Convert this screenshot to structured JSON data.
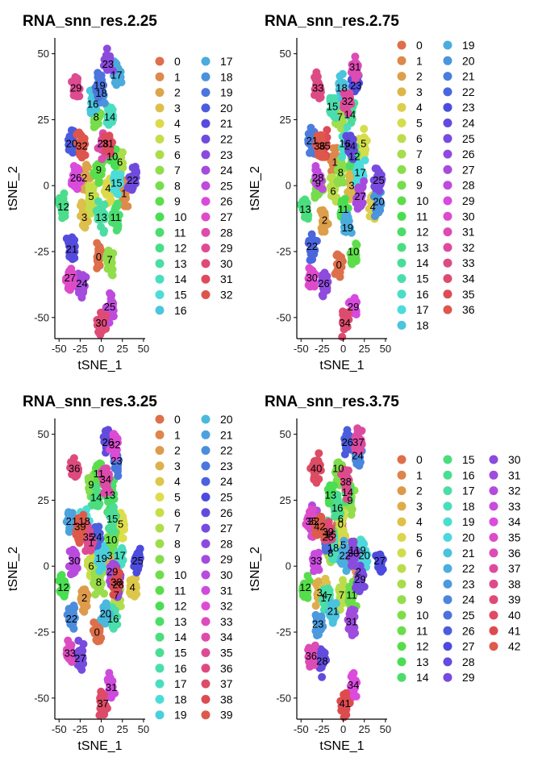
{
  "figure": {
    "panels": [
      {
        "title": "RNA_snn_res.2.25",
        "xlabel": "tSNE_1",
        "ylabel": "tSNE_2",
        "cluster_count": 33,
        "legend_per_column": 17,
        "cluster_centers": {
          "0": [
            -3,
            -27
          ],
          "1": [
            27,
            -3
          ],
          "2": [
            -20,
            3
          ],
          "3": [
            -20,
            -12
          ],
          "4": [
            8,
            -1
          ],
          "5": [
            -12,
            -4
          ],
          "6": [
            22,
            9
          ],
          "7": [
            10,
            -28
          ],
          "8": [
            -6,
            26
          ],
          "9": [
            -3,
            6
          ],
          "10": [
            13,
            11
          ],
          "11": [
            17,
            -12
          ],
          "12": [
            -45,
            -8
          ],
          "13": [
            0,
            -12
          ],
          "14": [
            10,
            26
          ],
          "15": [
            18,
            1
          ],
          "16": [
            -10,
            31
          ],
          "17": [
            18,
            42
          ],
          "18": [
            0,
            35
          ],
          "19": [
            -2,
            38
          ],
          "20": [
            -35,
            16
          ],
          "21": [
            -35,
            -24
          ],
          "22": [
            37,
            2
          ],
          "23": [
            8,
            46
          ],
          "24": [
            -23,
            -37
          ],
          "25": [
            10,
            -46
          ],
          "26": [
            -30,
            3
          ],
          "27": [
            -37,
            -35
          ],
          "28": [
            2,
            16
          ],
          "29": [
            -30,
            37
          ],
          "30": [
            0,
            -52
          ],
          "31": [
            8,
            16
          ],
          "32": [
            -23,
            15
          ]
        }
      },
      {
        "title": "RNA_snn_res.2.75",
        "xlabel": "tSNE_1",
        "ylabel": "tSNE_2",
        "cluster_count": 37,
        "legend_per_column": 19,
        "cluster_centers": {
          "0": [
            -5,
            -30
          ],
          "1": [
            -10,
            9
          ],
          "2": [
            -22,
            -13
          ],
          "3": [
            10,
            0
          ],
          "4": [
            35,
            -8
          ],
          "5": [
            24,
            16
          ],
          "6": [
            -12,
            -2
          ],
          "7": [
            -4,
            26
          ],
          "8": [
            -3,
            5
          ],
          "9": [
            -30,
            1
          ],
          "10": [
            12,
            -25
          ],
          "11": [
            0,
            -9
          ],
          "12": [
            13,
            11
          ],
          "13": [
            -45,
            -9
          ],
          "14": [
            8,
            27
          ],
          "15": [
            -13,
            30
          ],
          "16": [
            2,
            16
          ],
          "17": [
            20,
            5
          ],
          "18": [
            -2,
            37
          ],
          "19": [
            5,
            -16
          ],
          "20": [
            42,
            -6
          ],
          "21": [
            -37,
            17
          ],
          "22": [
            -37,
            -23
          ],
          "23": [
            15,
            38
          ],
          "24": [
            8,
            15
          ],
          "25": [
            42,
            2
          ],
          "26": [
            -23,
            -37
          ],
          "27": [
            20,
            -4
          ],
          "28": [
            -30,
            3
          ],
          "29": [
            12,
            -46
          ],
          "30": [
            -37,
            -35
          ],
          "31": [
            14,
            45
          ],
          "32": [
            5,
            32
          ],
          "33": [
            -30,
            37
          ],
          "34": [
            2,
            -52
          ],
          "35": [
            -22,
            15
          ],
          "36": [
            -28,
            15
          ]
        }
      },
      {
        "title": "RNA_snn_res.3.25",
        "xlabel": "tSNE_1",
        "ylabel": "tSNE_2",
        "cluster_count": 40,
        "legend_per_column": 20,
        "cluster_centers": {
          "0": [
            -5,
            -25
          ],
          "1": [
            -12,
            9
          ],
          "2": [
            -20,
            -12
          ],
          "3": [
            10,
            4
          ],
          "4": [
            37,
            -8
          ],
          "5": [
            23,
            16
          ],
          "6": [
            -12,
            0
          ],
          "7": [
            18,
            -11
          ],
          "8": [
            -3,
            -6
          ],
          "9": [
            -12,
            31
          ],
          "10": [
            12,
            10
          ],
          "11": [
            -3,
            35
          ],
          "12": [
            -45,
            -8
          ],
          "13": [
            10,
            27
          ],
          "14": [
            -6,
            26
          ],
          "15": [
            13,
            18
          ],
          "16": [
            14,
            -20
          ],
          "17": [
            22,
            4
          ],
          "18": [
            -20,
            17
          ],
          "19": [
            0,
            3
          ],
          "20": [
            5,
            -18
          ],
          "21": [
            -35,
            17
          ],
          "22": [
            -35,
            -20
          ],
          "23": [
            18,
            40
          ],
          "24": [
            -6,
            11
          ],
          "25": [
            43,
            2
          ],
          "26": [
            8,
            47
          ],
          "27": [
            -25,
            -35
          ],
          "28": [
            20,
            -7
          ],
          "29": [
            13,
            -2
          ],
          "30": [
            -32,
            2
          ],
          "31": [
            12,
            -46
          ],
          "32": [
            16,
            46
          ],
          "33": [
            -37,
            -33
          ],
          "34": [
            5,
            33
          ],
          "35": [
            -15,
            11
          ],
          "36": [
            -32,
            37
          ],
          "37": [
            2,
            -52
          ],
          "38": [
            18,
            -6
          ],
          "39": [
            -25,
            15
          ]
        }
      },
      {
        "title": "RNA_snn_res.3.75",
        "xlabel": "tSNE_1",
        "ylabel": "tSNE_2",
        "cluster_count": 43,
        "legend_per_column": 15,
        "cluster_centers": {
          "0": [
            -3,
            16
          ],
          "1": [
            10,
            6
          ],
          "2": [
            18,
            -2
          ],
          "3": [
            -28,
            -10
          ],
          "4": [
            -22,
            -11
          ],
          "5": [
            0,
            8
          ],
          "6": [
            -3,
            18
          ],
          "7": [
            -2,
            -11
          ],
          "8": [
            -15,
            5
          ],
          "9": [
            8,
            25
          ],
          "10": [
            -6,
            37
          ],
          "11": [
            10,
            -11
          ],
          "12": [
            -45,
            -8
          ],
          "13": [
            -15,
            27
          ],
          "14": [
            5,
            28
          ],
          "15": [
            -15,
            12
          ],
          "16": [
            -7,
            22
          ],
          "17": [
            -20,
            -12
          ],
          "18": [
            -12,
            7
          ],
          "19": [
            20,
            6
          ],
          "20": [
            25,
            4
          ],
          "21": [
            -12,
            -17
          ],
          "22": [
            2,
            4
          ],
          "23": [
            -30,
            -22
          ],
          "24": [
            17,
            42
          ],
          "25": [
            -18,
            11
          ],
          "26": [
            5,
            47
          ],
          "27": [
            43,
            2
          ],
          "28": [
            -25,
            -36
          ],
          "29": [
            20,
            -5
          ],
          "30": [
            12,
            5
          ],
          "31": [
            10,
            -21
          ],
          "32": [
            -35,
            17
          ],
          "33": [
            -32,
            2
          ],
          "34": [
            12,
            -45
          ],
          "35": [
            -38,
            17
          ],
          "36": [
            -38,
            -34
          ],
          "37": [
            18,
            47
          ],
          "38": [
            3,
            32
          ],
          "39": [
            -18,
            13
          ],
          "40": [
            -32,
            37
          ],
          "41": [
            2,
            -52
          ],
          "42": [
            -28,
            15
          ]
        }
      }
    ]
  },
  "chart_data": [
    {
      "type": "scatter",
      "title": "RNA_snn_res.2.25",
      "xlabel": "tSNE_1",
      "ylabel": "tSNE_2",
      "xlim": [
        -55,
        52
      ],
      "ylim": [
        -58,
        56
      ],
      "xticks": [
        -50,
        -25,
        0,
        25,
        50
      ],
      "yticks": [
        -50,
        -25,
        0,
        25,
        50
      ],
      "x_tick_labels": [
        "-50",
        "-25",
        "0",
        "25",
        "50"
      ],
      "y_tick_labels": [
        "-50",
        "-25",
        "0",
        "25",
        "50"
      ],
      "grid": false,
      "legend_placement": "right",
      "legend_entries": [
        "0",
        "1",
        "2",
        "3",
        "4",
        "5",
        "6",
        "7",
        "8",
        "9",
        "10",
        "11",
        "12",
        "13",
        "14",
        "15",
        "16",
        "17",
        "18",
        "19",
        "20",
        "21",
        "22",
        "23",
        "24",
        "25",
        "26",
        "27",
        "28",
        "29",
        "30",
        "31",
        "32"
      ]
    },
    {
      "type": "scatter",
      "title": "RNA_snn_res.2.75",
      "xlabel": "tSNE_1",
      "ylabel": "tSNE_2",
      "xlim": [
        -55,
        52
      ],
      "ylim": [
        -58,
        56
      ],
      "xticks": [
        -50,
        -25,
        0,
        25,
        50
      ],
      "yticks": [
        -50,
        -25,
        0,
        25,
        50
      ],
      "x_tick_labels": [
        "-50",
        "-25",
        "0",
        "25",
        "50"
      ],
      "y_tick_labels": [
        "-50",
        "-25",
        "0",
        "25",
        "50"
      ],
      "grid": false,
      "legend_placement": "right",
      "legend_entries": [
        "0",
        "1",
        "2",
        "3",
        "4",
        "5",
        "6",
        "7",
        "8",
        "9",
        "10",
        "11",
        "12",
        "13",
        "14",
        "15",
        "16",
        "17",
        "18",
        "19",
        "20",
        "21",
        "22",
        "23",
        "24",
        "25",
        "26",
        "27",
        "28",
        "29",
        "30",
        "31",
        "32",
        "33",
        "34",
        "35",
        "36"
      ]
    },
    {
      "type": "scatter",
      "title": "RNA_snn_res.3.25",
      "xlabel": "tSNE_1",
      "ylabel": "tSNE_2",
      "xlim": [
        -55,
        52
      ],
      "ylim": [
        -58,
        56
      ],
      "xticks": [
        -50,
        -25,
        0,
        25,
        50
      ],
      "yticks": [
        -50,
        -25,
        0,
        25,
        50
      ],
      "x_tick_labels": [
        "-50",
        "-25",
        "0",
        "25",
        "50"
      ],
      "y_tick_labels": [
        "-50",
        "-25",
        "0",
        "25",
        "50"
      ],
      "grid": false,
      "legend_placement": "right",
      "legend_entries": [
        "0",
        "1",
        "2",
        "3",
        "4",
        "5",
        "6",
        "7",
        "8",
        "9",
        "10",
        "11",
        "12",
        "13",
        "14",
        "15",
        "16",
        "17",
        "18",
        "19",
        "20",
        "21",
        "22",
        "23",
        "24",
        "25",
        "26",
        "27",
        "28",
        "29",
        "30",
        "31",
        "32",
        "33",
        "34",
        "35",
        "36",
        "37",
        "38",
        "39"
      ]
    },
    {
      "type": "scatter",
      "title": "RNA_snn_res.3.75",
      "xlabel": "tSNE_1",
      "ylabel": "tSNE_2",
      "xlim": [
        -55,
        52
      ],
      "ylim": [
        -58,
        56
      ],
      "xticks": [
        -50,
        -25,
        0,
        25,
        50
      ],
      "yticks": [
        -50,
        -25,
        0,
        25,
        50
      ],
      "x_tick_labels": [
        "-50",
        "-25",
        "0",
        "25",
        "50"
      ],
      "y_tick_labels": [
        "-50",
        "-25",
        "0",
        "25",
        "50"
      ],
      "grid": false,
      "legend_placement": "right",
      "legend_entries": [
        "0",
        "1",
        "2",
        "3",
        "4",
        "5",
        "6",
        "7",
        "8",
        "9",
        "10",
        "11",
        "12",
        "13",
        "14",
        "15",
        "16",
        "17",
        "18",
        "19",
        "20",
        "21",
        "22",
        "23",
        "24",
        "25",
        "26",
        "27",
        "28",
        "29",
        "30",
        "31",
        "32",
        "33",
        "34",
        "35",
        "36",
        "37",
        "38",
        "39",
        "40",
        "41",
        "42"
      ]
    }
  ]
}
